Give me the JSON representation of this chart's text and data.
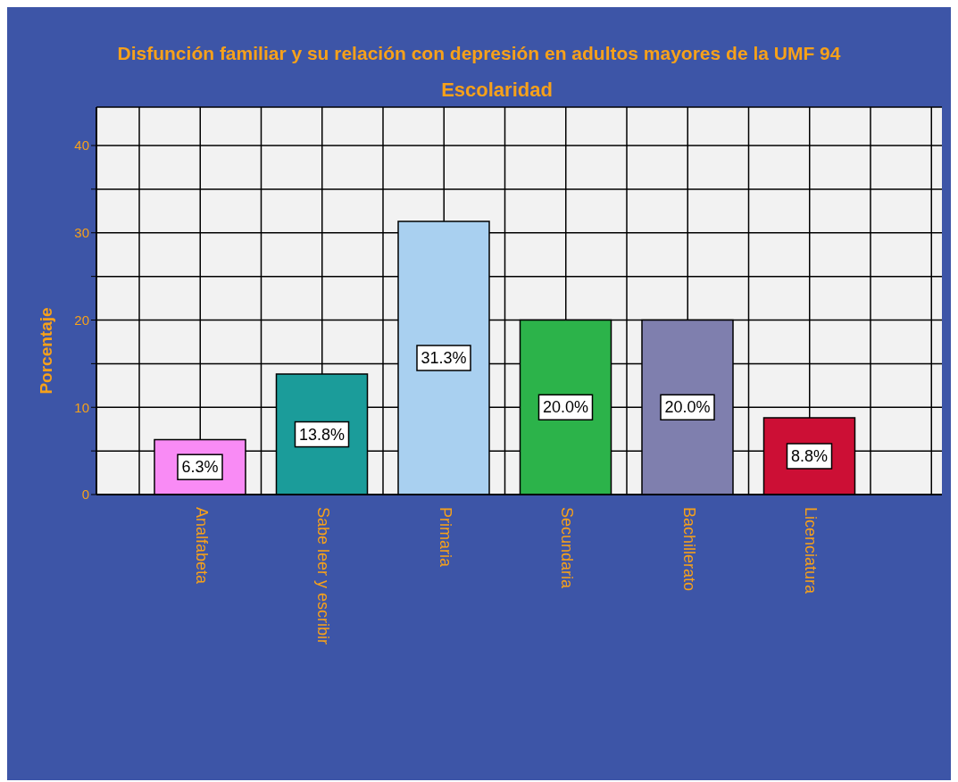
{
  "chart_data": {
    "type": "bar",
    "title": "Disfunción familiar y su relación con depresión en adultos mayores de la UMF 94",
    "subtitle": "Escolaridad",
    "ylabel": "Porcentaje",
    "categories": [
      "Analfabeta",
      "Sabe leer y escribir",
      "Primaria",
      "Secundaria",
      "Bachillerato",
      "Licenciatura"
    ],
    "values": [
      6.3,
      13.8,
      31.3,
      20.0,
      20.0,
      8.8
    ],
    "value_labels": [
      "6.3%",
      "13.8%",
      "31.3%",
      "20.0%",
      "20.0%",
      "8.8%"
    ],
    "colors": [
      "#f98bf5",
      "#1b9c9a",
      "#a9d0f0",
      "#2cb34a",
      "#7f7fae",
      "#cc0f35"
    ],
    "ylim": [
      0,
      44.4
    ],
    "yticks": [
      0,
      {
        "value": 5,
        "label": null
      },
      10,
      {
        "value": 15,
        "label": null
      },
      20,
      {
        "value": 25,
        "label": null
      },
      30,
      {
        "value": 35,
        "label": null
      },
      40
    ],
    "grid": true
  }
}
